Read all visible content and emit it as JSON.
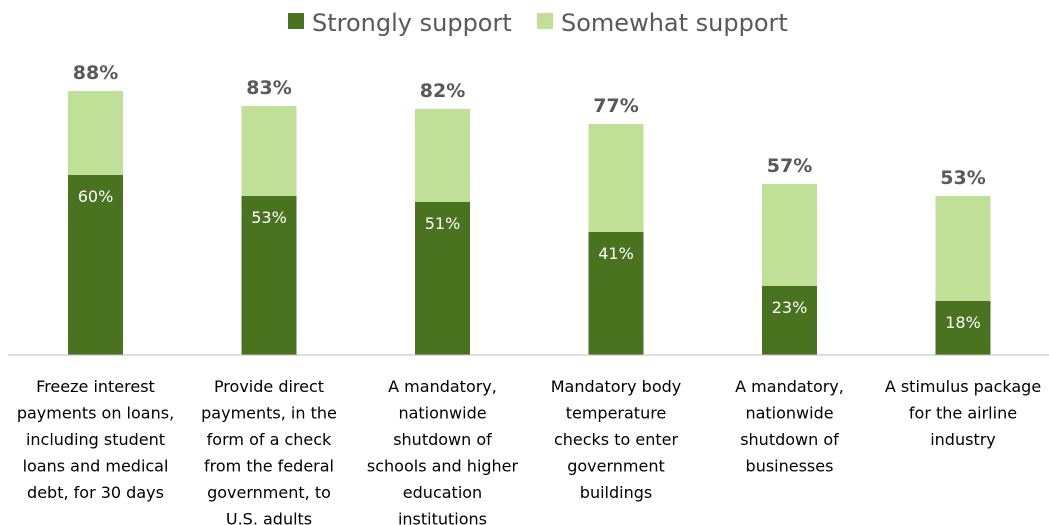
{
  "colors": {
    "strong": "#4a7320",
    "somewhat": "#c0df97",
    "axis": "#bfbfbf",
    "total_label": "#595959",
    "legend_text": "#595959"
  },
  "legend": {
    "strong_label": "Strongly support",
    "somewhat_label": "Somewhat support"
  },
  "chart_data": {
    "type": "bar",
    "stacked": true,
    "title": "",
    "xlabel": "",
    "ylabel": "",
    "ylim": [
      0,
      100
    ],
    "grid": false,
    "legend_position": "top",
    "categories": [
      [
        "Freeze interest",
        "payments on loans,",
        "including student",
        "loans and medical",
        "debt, for 30 days"
      ],
      [
        "Provide direct",
        "payments, in the",
        "form of a check",
        "from the federal",
        "government, to",
        "U.S. adults"
      ],
      [
        "A mandatory,",
        "nationwide",
        "shutdown of",
        "schools and higher",
        "education",
        "institutions"
      ],
      [
        "Mandatory body",
        "temperature",
        "checks to enter",
        "government",
        "buildings"
      ],
      [
        "A mandatory,",
        "nationwide",
        "shutdown of",
        "businesses"
      ],
      [
        "A stimulus package",
        "for the airline",
        "industry"
      ]
    ],
    "series": [
      {
        "name": "Strongly support",
        "values": [
          60,
          53,
          51,
          41,
          23,
          18
        ],
        "labels": [
          "60%",
          "53%",
          "51%",
          "41%",
          "23%",
          "18%"
        ]
      },
      {
        "name": "Somewhat support",
        "values": [
          28,
          30,
          31,
          36,
          34,
          35
        ]
      }
    ],
    "totals": [
      88,
      83,
      82,
      77,
      57,
      53
    ],
    "total_labels": [
      "88%",
      "83%",
      "82%",
      "77%",
      "57%",
      "53%"
    ]
  }
}
